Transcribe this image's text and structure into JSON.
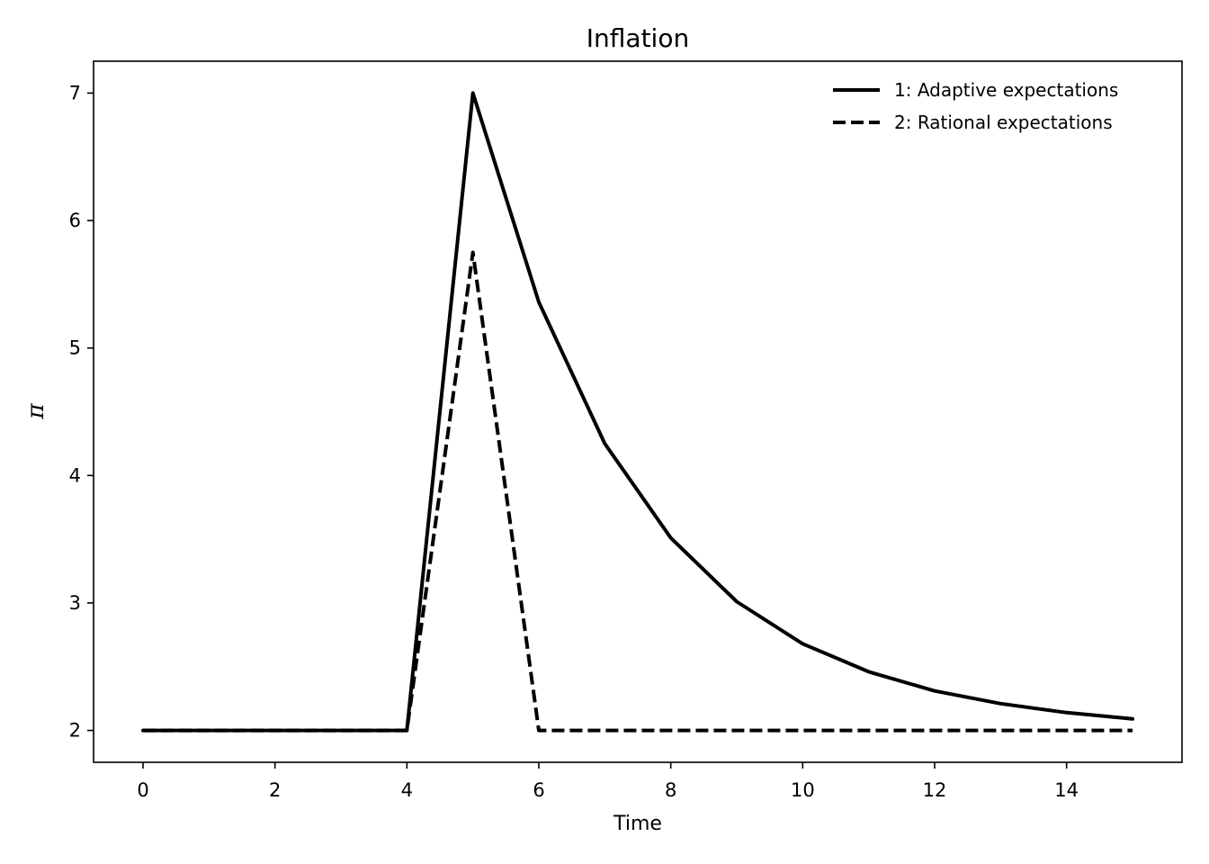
{
  "chart_data": {
    "type": "line",
    "title": "Inflation",
    "xlabel": "Time",
    "ylabel": "π",
    "xlim": [
      -0.75,
      15.75
    ],
    "ylim": [
      1.75,
      7.25
    ],
    "xticks": [
      0,
      2,
      4,
      6,
      8,
      10,
      12,
      14
    ],
    "yticks": [
      2,
      3,
      4,
      5,
      6,
      7
    ],
    "grid": false,
    "legend_position": "top-right",
    "x": [
      0,
      1,
      2,
      3,
      4,
      5,
      6,
      7,
      8,
      9,
      10,
      11,
      12,
      13,
      14,
      15
    ],
    "series": [
      {
        "name": "1: Adaptive expectations",
        "style": "solid",
        "color": "#000000",
        "values": [
          2,
          2,
          2,
          2,
          2,
          7,
          5.36,
          4.25,
          3.51,
          3.01,
          2.68,
          2.46,
          2.31,
          2.21,
          2.14,
          2.09
        ]
      },
      {
        "name": "2: Rational expectations",
        "style": "dashed",
        "color": "#000000",
        "values": [
          2,
          2,
          2,
          2,
          2,
          5.75,
          2,
          2,
          2,
          2,
          2,
          2,
          2,
          2,
          2,
          2
        ]
      }
    ]
  }
}
